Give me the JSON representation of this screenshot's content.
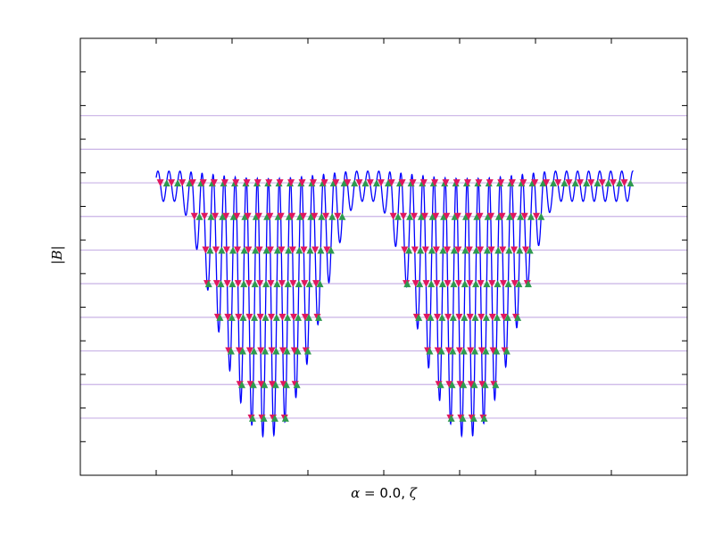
{
  "chart_data": {
    "type": "line",
    "title": "",
    "xlabel_math": "α = ",
    "xlabel_value": "0.0",
    "xlabel_sep": ", ",
    "xlabel_var": "ζ",
    "ylabel": "|B|",
    "xticks": [
      0.0,
      0.125,
      0.25,
      0.375,
      0.5,
      0.625,
      0.75,
      0.875,
      1.0
    ],
    "yticks": [
      1,
      2,
      3,
      4,
      5,
      6,
      7,
      8,
      9,
      10,
      11,
      12,
      13
    ],
    "xlim": [
      -0.125,
      0.875
    ],
    "ylim": [
      0.0,
      13.0
    ],
    "grid": false,
    "level_line_color": "#c9b3e6",
    "level_lines": [
      1.7,
      2.7,
      3.7,
      4.7,
      5.7,
      6.7,
      7.7,
      8.7,
      9.7,
      10.7
    ],
    "curve_color": "#0000ff",
    "down_marker_color": "#e0175e",
    "up_marker_color": "#2e9a4e",
    "wells": [
      {
        "center": 0.1832,
        "min": 1.35,
        "half_width": 0.147,
        "period": 0.0182
      },
      {
        "center": 0.5122,
        "min": 1.35,
        "half_width": 0.147,
        "period": 0.0182
      }
    ],
    "curve_x_range": [
      0.0,
      0.786
    ],
    "baseline_level": 8.6,
    "outer_ripple": 0.45
  }
}
